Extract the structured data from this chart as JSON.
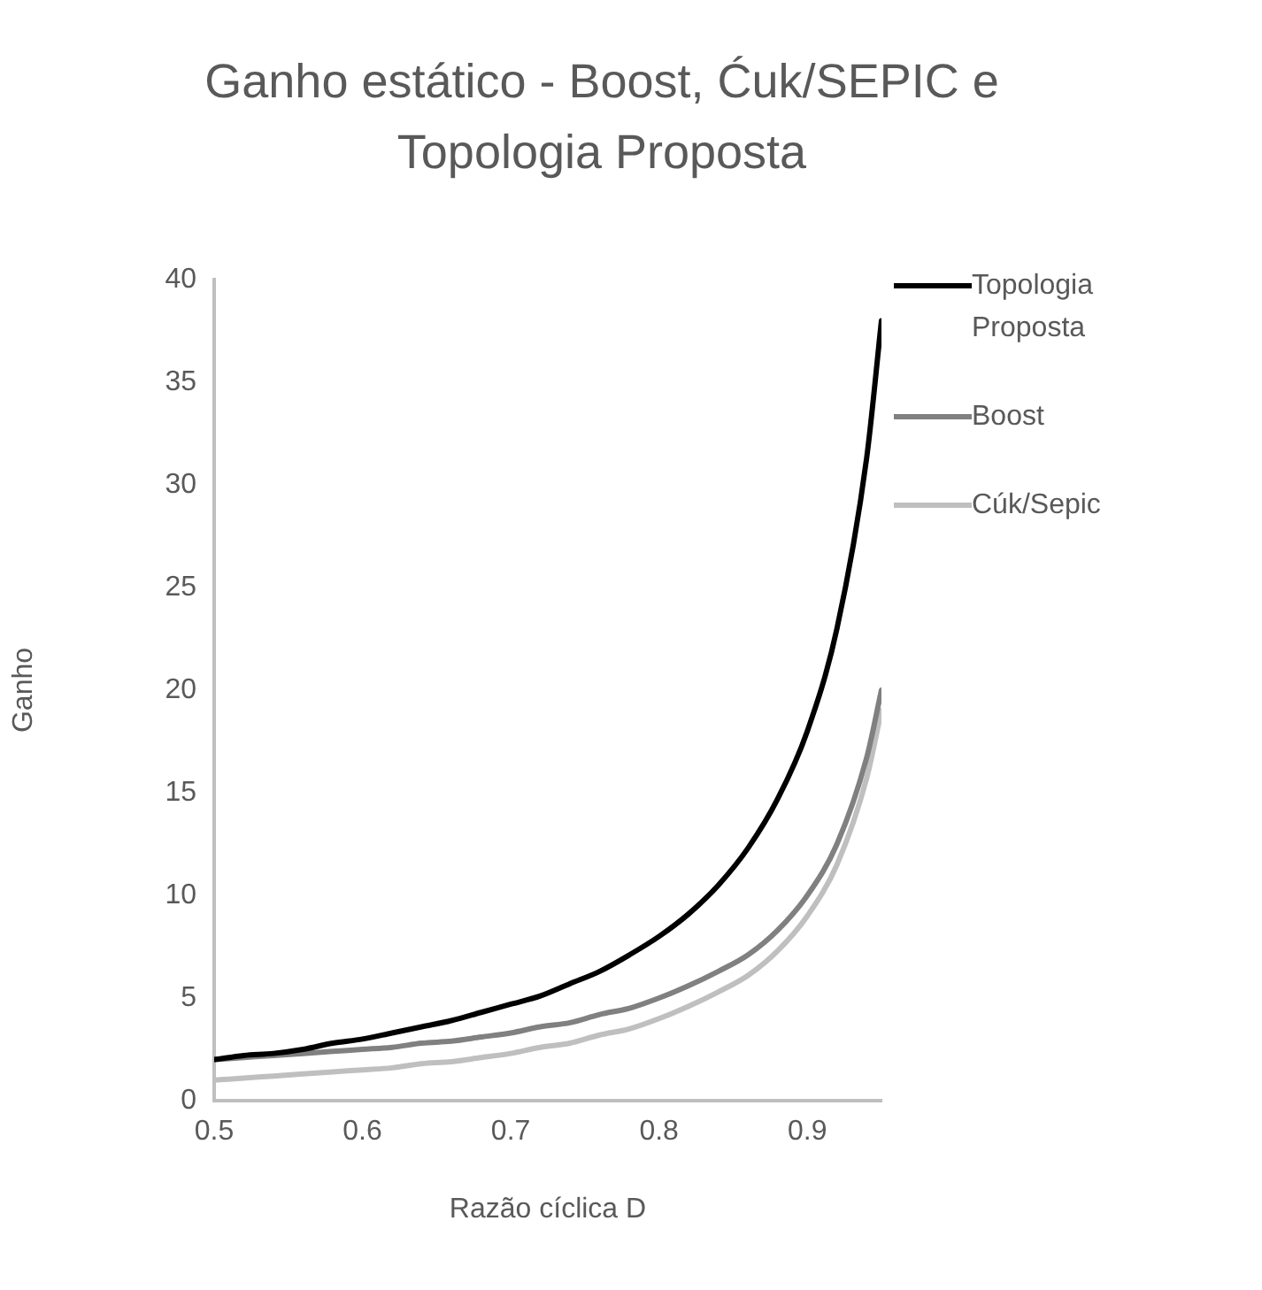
{
  "chart_data": {
    "type": "line",
    "title": "Ganho estático - Boost, Ćuk/SEPIC e Topologia Proposta",
    "xlabel": "Razão cíclica D",
    "ylabel": "Ganho",
    "x": [
      0.5,
      0.52,
      0.54,
      0.56,
      0.58,
      0.6,
      0.62,
      0.64,
      0.66,
      0.68,
      0.7,
      0.72,
      0.74,
      0.76,
      0.78,
      0.8,
      0.82,
      0.84,
      0.86,
      0.88,
      0.9,
      0.92,
      0.94,
      0.95
    ],
    "series": [
      {
        "name": "Topologia Proposta",
        "color": "#000000",
        "values": [
          2,
          2.2,
          2.3,
          2.5,
          2.8,
          3,
          3.3,
          3.6,
          3.9,
          4.3,
          4.7,
          5.1,
          5.7,
          6.3,
          7.1,
          8,
          9.1,
          10.5,
          12.3,
          14.7,
          18,
          23,
          31.3,
          38
        ]
      },
      {
        "name": "Boost",
        "color": "#808080",
        "values": [
          2,
          2.1,
          2.2,
          2.3,
          2.4,
          2.5,
          2.6,
          2.8,
          2.9,
          3.1,
          3.3,
          3.6,
          3.8,
          4.2,
          4.5,
          5,
          5.6,
          6.3,
          7.1,
          8.3,
          10,
          12.5,
          16.7,
          20
        ]
      },
      {
        "name": "Cúk/Sepic",
        "color": "#bfbfbf",
        "values": [
          1,
          1.1,
          1.2,
          1.3,
          1.4,
          1.5,
          1.6,
          1.8,
          1.9,
          2.1,
          2.3,
          2.6,
          2.8,
          3.2,
          3.5,
          4,
          4.6,
          5.3,
          6.1,
          7.3,
          9,
          11.5,
          15.7,
          19
        ]
      }
    ],
    "xlim": [
      0.5,
      0.95
    ],
    "xticks": [
      0.5,
      0.6,
      0.7,
      0.8,
      0.9
    ],
    "ylim": [
      0,
      40
    ],
    "yticks": [
      0,
      5,
      10,
      15,
      20,
      25,
      30,
      35,
      40
    ],
    "grid": false,
    "legend": "right",
    "marker": "none",
    "line_style": "solid"
  }
}
